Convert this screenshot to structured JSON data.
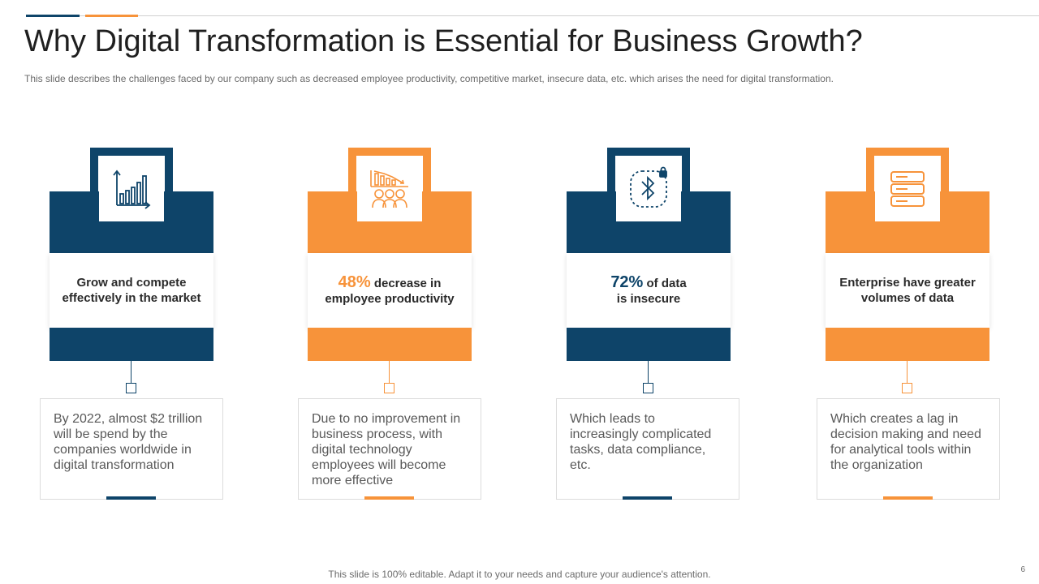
{
  "slide": {
    "title": "Why Digital Transformation is Essential for Business Growth?",
    "subtitle": "This slide describes the challenges faced by our company such as decreased employee productivity,  competitive market, insecure data, etc. which arises the need for digital transformation.",
    "footer": "This slide is 100% editable. Adapt it to your needs and capture your audience's attention.",
    "page_number": "6"
  },
  "colors": {
    "blue": "#0e4469",
    "orange": "#f7933a"
  },
  "cards": [
    {
      "icon": "bar-chart-icon",
      "heading_line1": "Grow and compete",
      "heading_line2": "effectively in the market",
      "description": "By 2022, almost $2 trillion will be spend by the companies worldwide in digital transformation"
    },
    {
      "icon": "declining-team-chart-icon",
      "stat": "48%",
      "heading_line1": " decrease in",
      "heading_line2": "employee productivity",
      "description": "Due to no improvement in business process, with digital technology employees will become more effective"
    },
    {
      "icon": "bluetooth-lock-icon",
      "stat": "72%",
      "heading_line1": " of data",
      "heading_line2": "is insecure",
      "description": "Which leads to increasingly complicated tasks, data compliance, etc."
    },
    {
      "icon": "database-server-icon",
      "heading_line1": "Enterprise have greater",
      "heading_line2": "volumes of data",
      "description": "Which creates a lag in decision making and need for analytical tools within the organization"
    }
  ]
}
